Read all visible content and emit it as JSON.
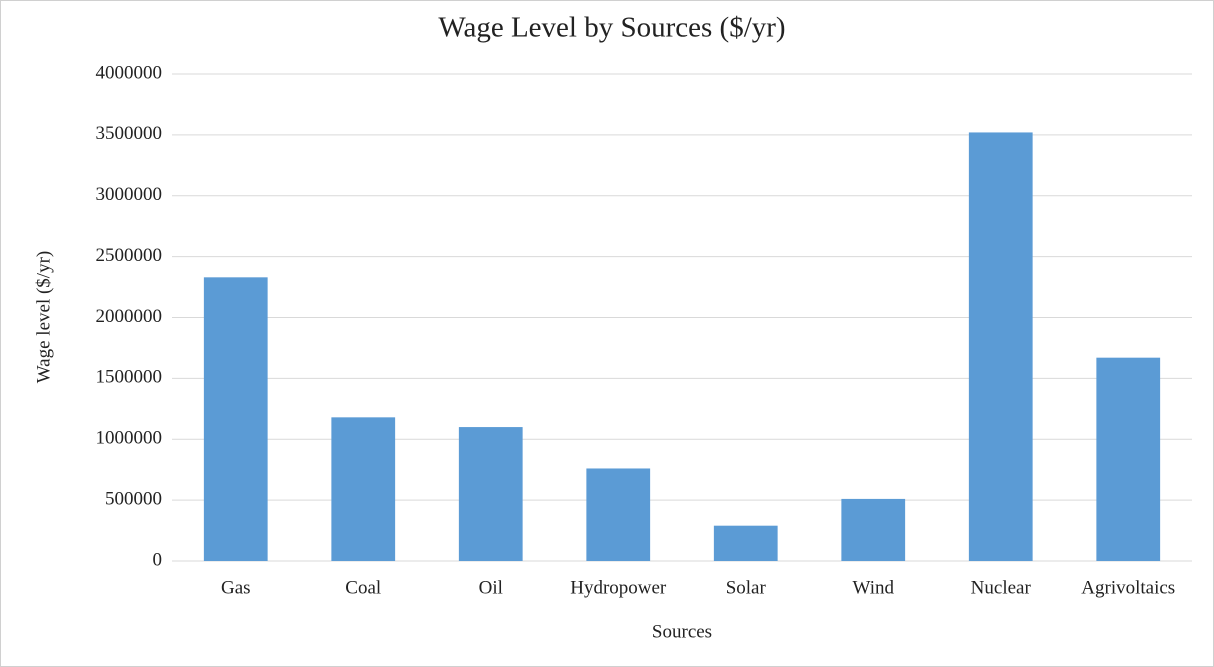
{
  "chart_data": {
    "type": "bar",
    "title": "Wage Level by Sources ($/yr)",
    "x_label": "Sources",
    "y_label": "Wage level ($/yr)",
    "categories": [
      "Gas",
      "Coal",
      "Oil",
      "Hydropower",
      "Solar",
      "Wind",
      "Nuclear",
      "Agrivoltaics"
    ],
    "values": [
      2330000,
      1180000,
      1100000,
      760000,
      290000,
      510000,
      3520000,
      1670000
    ],
    "color": "#5b9bd5",
    "ylim": [
      0,
      4000000
    ],
    "yticks": [
      0,
      500000,
      1000000,
      1500000,
      2000000,
      2500000,
      3000000,
      3500000,
      4000000
    ],
    "grid": true
  }
}
